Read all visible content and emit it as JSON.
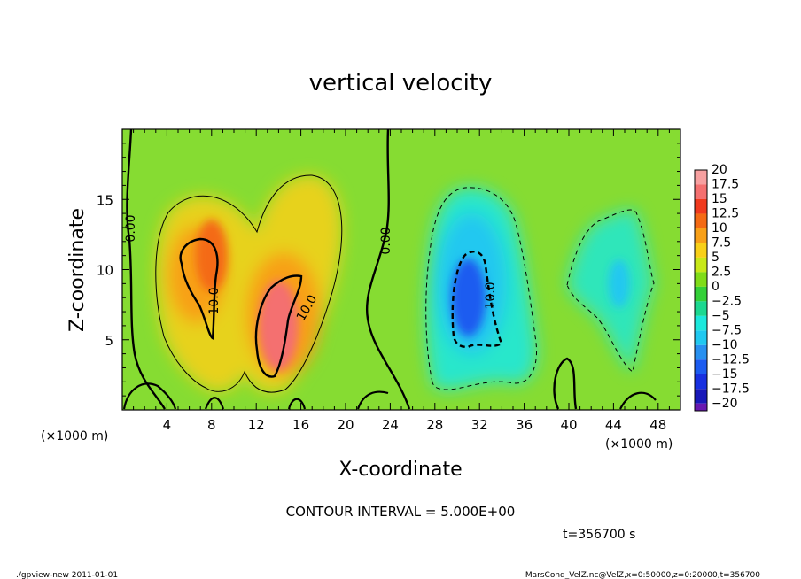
{
  "chart_data": {
    "type": "heatmap",
    "title": "vertical velocity",
    "xlabel": "X-coordinate",
    "ylabel": "Z-coordinate",
    "x_unit_label": "(×1000 m)",
    "y_unit_label": "(×1000 m)",
    "xlim": [
      0,
      50
    ],
    "ylim": [
      0,
      20
    ],
    "x_ticks": [
      4,
      8,
      12,
      16,
      20,
      24,
      28,
      32,
      36,
      40,
      44,
      48
    ],
    "y_ticks": [
      5,
      10,
      15
    ],
    "legend": {
      "placement": "right",
      "levels": [
        20,
        17.5,
        15,
        12.5,
        10,
        7.5,
        5,
        2.5,
        0,
        -2.5,
        -5,
        -7.5,
        -10,
        -12.5,
        -15,
        -17.5,
        -20
      ],
      "labels": [
        "20",
        "17.5",
        "15",
        "12.5",
        "10",
        "7.5",
        "5",
        "2.5",
        "0",
        "−2.5",
        "−5",
        "−7.5",
        "−10",
        "−12.5",
        "−15",
        "−17.5",
        "−20"
      ],
      "colors": [
        "#f7a0a0",
        "#f47070",
        "#f03a1e",
        "#f46a14",
        "#f8a018",
        "#f8d018",
        "#c8e818",
        "#80dc18",
        "#34d038",
        "#1cd890",
        "#1ce8dc",
        "#20c8f0",
        "#2890f0",
        "#1c5cf0",
        "#1830e0",
        "#1818b8",
        "#6818b0"
      ]
    },
    "contour_labels": [
      {
        "text": "0.00",
        "x": 0.3,
        "z": 13
      },
      {
        "text": "10.0",
        "x": 7.5,
        "z": 7.8
      },
      {
        "text": "10.0",
        "x": 16,
        "z": 7.5
      },
      {
        "text": "0.00",
        "x": 23.8,
        "z": 12
      },
      {
        "text": "10.0",
        "x": 32.5,
        "z": 7.8
      }
    ],
    "cells": [
      {
        "x": 8,
        "z": 11,
        "value": 12
      },
      {
        "x": 14,
        "z": 6,
        "value": 15
      },
      {
        "x": 31,
        "z": 8,
        "value": -13
      },
      {
        "x": 44.5,
        "z": 9,
        "value": -8
      }
    ],
    "contour_interval": "CONTOUR INTERVAL = 5.000E+00",
    "time": "t=356700 s"
  },
  "footer": {
    "left": "./gpview-new   2011-01-01",
    "right": "MarsCond_VelZ.nc@VelZ,x=0:50000,z=0:20000,t=356700"
  }
}
